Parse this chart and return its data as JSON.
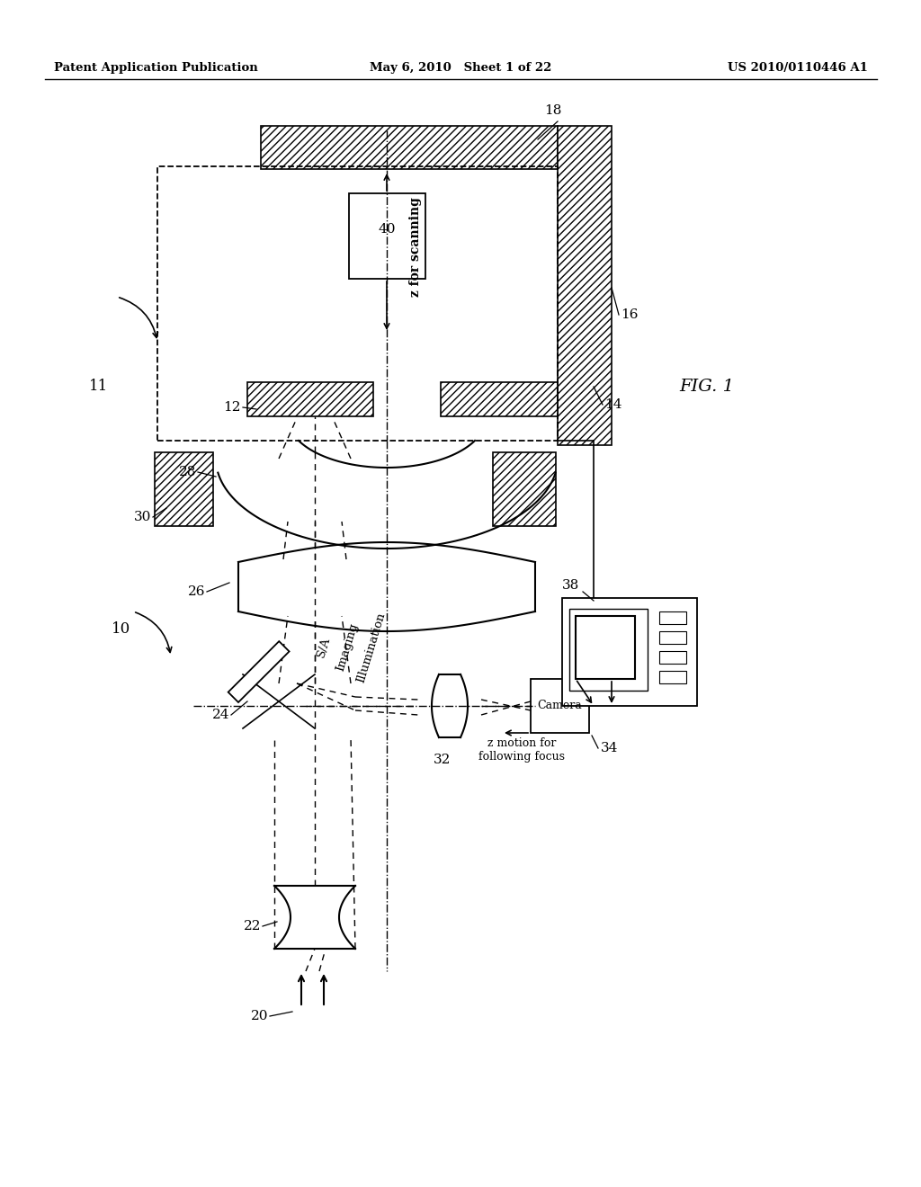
{
  "background_color": "#ffffff",
  "header_left": "Patent Application Publication",
  "header_mid": "May 6, 2010   Sheet 1 of 22",
  "header_right": "US 2010/0110446 A1",
  "fig_label": "FIG. 1"
}
